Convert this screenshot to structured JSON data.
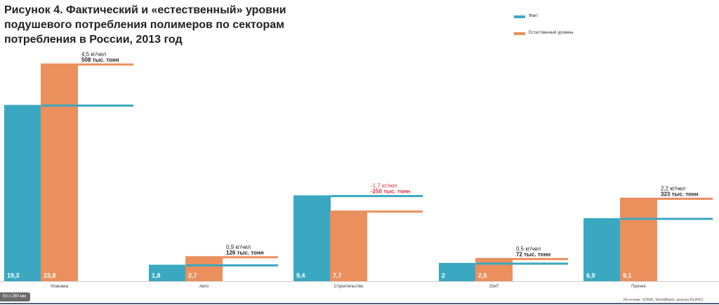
{
  "title": "Рисунок 4. Фактический и «естественный» уровни подушевого потребления полимеров по секторам потребления в России, 2013 год",
  "legend": [
    {
      "label": "Факт",
      "color": "#3aa8c1"
    },
    {
      "label": "Естественный уровень",
      "color": "#eb8f5d"
    }
  ],
  "source": "Источник: VDMA, WorldBank, анализ RUPEC",
  "size_badge": "50 x 280 мм",
  "colors": {
    "fact": "#3aa8c1",
    "natural": "#eb8f5d",
    "negative": "#e0303a",
    "text": "#222222"
  },
  "chart_data": {
    "type": "bar",
    "categories": [
      "Упаковка",
      "Авто",
      "Строительство",
      "ЗЗиТ",
      "Прочее"
    ],
    "series": [
      {
        "name": "Факт",
        "values": [
          19.3,
          1.8,
          9.4,
          2,
          6.9
        ]
      },
      {
        "name": "Естественный уровень",
        "values": [
          23.8,
          2.7,
          7.7,
          2.5,
          9.1
        ]
      }
    ],
    "value_labels": [
      [
        "19,3",
        "1,8",
        "9,4",
        "2",
        "6,9"
      ],
      [
        "23,8",
        "2,7",
        "7,7",
        "2,5",
        "9,1"
      ]
    ],
    "annotations": [
      {
        "category": "Упаковка",
        "line1": "4,5 кг/чел",
        "line2": "508 тыс. тонн",
        "negative": false
      },
      {
        "category": "Авто",
        "line1": "0,9 кг/чел",
        "line2": "126 тыс. тонн",
        "negative": false
      },
      {
        "category": "Строительство",
        "line1": "-1,7 кг/чел",
        "line2": "-250 тыс. тонн",
        "negative": true
      },
      {
        "category": "ЗЗиТ",
        "line1": "0,5 кг/чел",
        "line2": "72 тыс. тонн",
        "negative": false
      },
      {
        "category": "Прочее",
        "line1": "2,2 кг/чел",
        "line2": "323 тыс. тонн",
        "negative": false
      }
    ],
    "ylim": [
      0,
      25
    ],
    "grid": false,
    "legend_position": "top-right"
  }
}
